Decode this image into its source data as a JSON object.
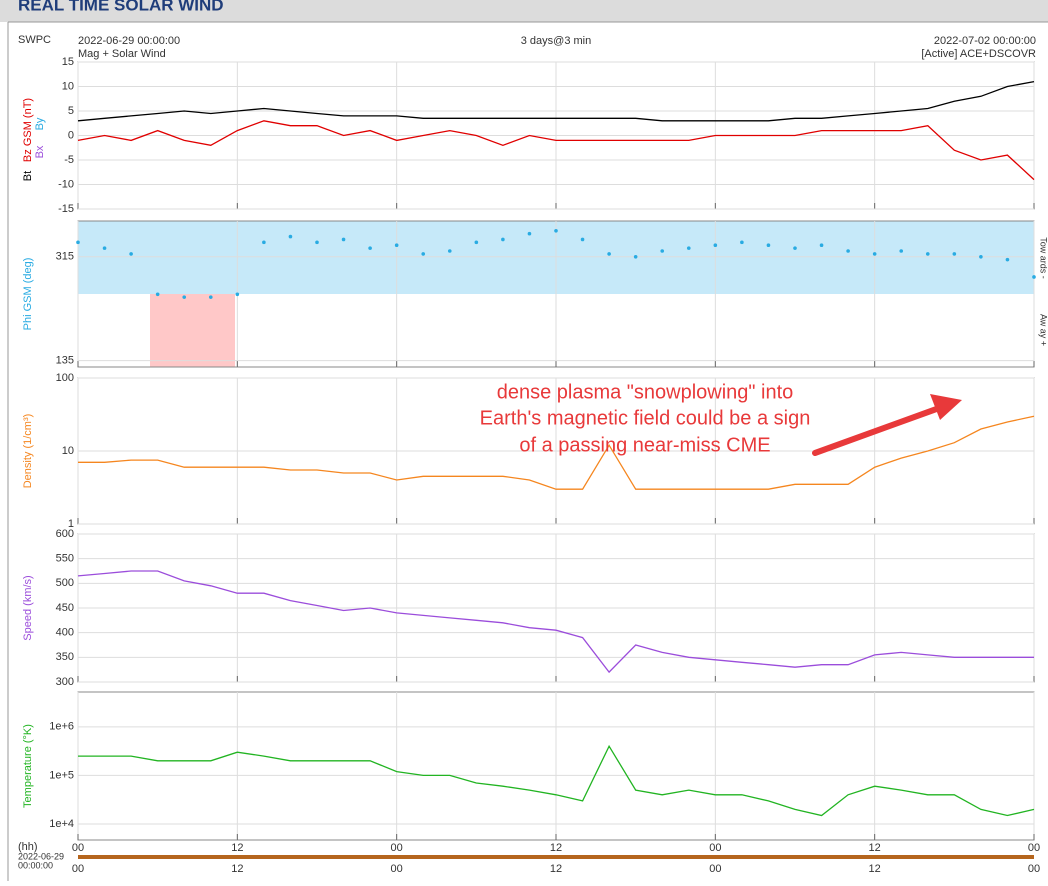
{
  "header": {
    "title": "REAL TIME SOLAR WIND",
    "source": "SWPC",
    "start": "2022-06-29 00:00:00",
    "subtitle": "Mag + Solar Wind",
    "span": "3 days@3 min",
    "end": "2022-07-02 00:00:00",
    "status": "[Active] ACE+DSCOVR"
  },
  "annotation": [
    "dense plasma \"snowplowing\" into",
    "Earth's magnetic field could be a sign",
    "of a passing near-miss CME"
  ],
  "x_axis": {
    "unit": "(hh)",
    "date": "2022-06-29",
    "time": "00:00:00"
  },
  "chart_data": [
    {
      "type": "line",
      "ylabel": "Bz GSM (nT)",
      "other_labels": [
        {
          "text": "Bx",
          "color": "#9b4ddb"
        },
        {
          "text": "By",
          "color": "#29abe2"
        }
      ],
      "x": [
        0,
        2,
        4,
        6,
        8,
        10,
        12,
        14,
        16,
        18,
        20,
        22,
        24,
        26,
        28,
        30,
        32,
        34,
        36,
        38,
        40,
        42,
        44,
        46,
        48,
        50,
        52,
        54,
        56,
        58,
        60,
        62,
        64,
        66,
        68,
        70,
        72
      ],
      "xlim": [
        0,
        72
      ],
      "xticks": [
        {
          "value": 0,
          "label": "00"
        },
        {
          "value": 12,
          "label": "12"
        },
        {
          "value": 24,
          "label": "00"
        },
        {
          "value": 36,
          "label": "12"
        },
        {
          "value": 48,
          "label": "00"
        },
        {
          "value": 60,
          "label": "12"
        },
        {
          "value": 72,
          "label": "00"
        }
      ],
      "ylim": [
        -15,
        15
      ],
      "yticks": [
        -15,
        -10,
        -5,
        0,
        5,
        10,
        15
      ],
      "grid": true,
      "series": [
        {
          "name": "Bt",
          "color": "#000000",
          "values": [
            3,
            3.5,
            4,
            4.5,
            5,
            4.5,
            5,
            5.5,
            5,
            4.5,
            4,
            4,
            4,
            3.5,
            3.5,
            3.5,
            3.5,
            3.5,
            3.5,
            3.5,
            3.5,
            3.5,
            3,
            3,
            3,
            3,
            3,
            3.5,
            3.5,
            4,
            4.5,
            5,
            5.5,
            7,
            8,
            10,
            11
          ]
        },
        {
          "name": "Bz",
          "color": "#e00000",
          "values": [
            -1,
            0,
            -1,
            1,
            -1,
            -2,
            1,
            3,
            2,
            2,
            0,
            1,
            -1,
            0,
            1,
            0,
            -2,
            0,
            -1,
            -1,
            -1,
            -1,
            -1,
            -1,
            0,
            0,
            0,
            0,
            1,
            1,
            1,
            1,
            2,
            -3,
            -5,
            -4,
            -9
          ]
        }
      ]
    },
    {
      "type": "scatter",
      "ylabel": "Phi GSM (deg)",
      "right_labels": [
        "Tow ards -",
        "Aw ay +"
      ],
      "x": [
        0,
        2,
        4,
        6,
        8,
        10,
        12,
        14,
        16,
        18,
        20,
        22,
        24,
        26,
        28,
        30,
        32,
        34,
        36,
        38,
        40,
        42,
        44,
        46,
        48,
        50,
        52,
        54,
        56,
        58,
        60,
        62,
        64,
        66,
        68,
        70,
        72
      ],
      "xlim": [
        0,
        72
      ],
      "xticks": [
        {
          "value": 0,
          "label": "00"
        },
        {
          "value": 12,
          "label": "12"
        },
        {
          "value": 24,
          "label": "00"
        },
        {
          "value": 36,
          "label": "12"
        },
        {
          "value": 48,
          "label": "00"
        },
        {
          "value": 60,
          "label": "12"
        },
        {
          "value": 72,
          "label": "00"
        }
      ],
      "ylim": [
        124,
        377
      ],
      "yticks": [
        135,
        315
      ],
      "grid": true,
      "series": [
        {
          "name": "Phi",
          "color": "#29abe2",
          "values": [
            340,
            330,
            320,
            250,
            245,
            245,
            250,
            340,
            350,
            340,
            345,
            330,
            335,
            320,
            325,
            340,
            345,
            355,
            360,
            345,
            320,
            315,
            325,
            330,
            335,
            340,
            335,
            330,
            335,
            325,
            320,
            325,
            320,
            320,
            315,
            310,
            280
          ]
        }
      ]
    },
    {
      "type": "line",
      "ylabel": "Density (1/cm³)",
      "log": true,
      "x": [
        0,
        2,
        4,
        6,
        8,
        10,
        12,
        14,
        16,
        18,
        20,
        22,
        24,
        26,
        28,
        30,
        32,
        34,
        36,
        38,
        40,
        42,
        44,
        46,
        48,
        50,
        52,
        54,
        56,
        58,
        60,
        62,
        64,
        66,
        68,
        70,
        72
      ],
      "xlim": [
        0,
        72
      ],
      "xticks": [
        {
          "value": 0,
          "label": "00"
        },
        {
          "value": 12,
          "label": "12"
        },
        {
          "value": 24,
          "label": "00"
        },
        {
          "value": 36,
          "label": "12"
        },
        {
          "value": 48,
          "label": "00"
        },
        {
          "value": 60,
          "label": "12"
        },
        {
          "value": 72,
          "label": "00"
        }
      ],
      "ylim": [
        1,
        100
      ],
      "yticks": [
        1,
        10,
        100
      ],
      "grid": true,
      "series": [
        {
          "name": "Density",
          "color": "#f5861f",
          "values": [
            7,
            7,
            7.5,
            7.5,
            6,
            6,
            6,
            6,
            5.5,
            5.5,
            5,
            5,
            4,
            4.5,
            4.5,
            4.5,
            4.5,
            4,
            3,
            3,
            12,
            3,
            3,
            3,
            3,
            3,
            3,
            3.5,
            3.5,
            3.5,
            6,
            8,
            10,
            13,
            20,
            25,
            30
          ]
        }
      ]
    },
    {
      "type": "line",
      "ylabel": "Speed (km/s)",
      "x": [
        0,
        2,
        4,
        6,
        8,
        10,
        12,
        14,
        16,
        18,
        20,
        22,
        24,
        26,
        28,
        30,
        32,
        34,
        36,
        38,
        40,
        42,
        44,
        46,
        48,
        50,
        52,
        54,
        56,
        58,
        60,
        62,
        64,
        66,
        68,
        70,
        72
      ],
      "xlim": [
        0,
        72
      ],
      "xticks": [
        {
          "value": 0,
          "label": "00"
        },
        {
          "value": 12,
          "label": "12"
        },
        {
          "value": 24,
          "label": "00"
        },
        {
          "value": 36,
          "label": "12"
        },
        {
          "value": 48,
          "label": "00"
        },
        {
          "value": 60,
          "label": "12"
        },
        {
          "value": 72,
          "label": "00"
        }
      ],
      "ylim": [
        300,
        600
      ],
      "yticks": [
        300,
        350,
        400,
        450,
        500,
        550,
        600
      ],
      "grid": true,
      "series": [
        {
          "name": "Speed",
          "color": "#9b4ddb",
          "values": [
            515,
            520,
            525,
            525,
            505,
            495,
            480,
            480,
            465,
            455,
            445,
            450,
            440,
            435,
            430,
            425,
            420,
            410,
            405,
            390,
            320,
            375,
            360,
            350,
            345,
            340,
            335,
            330,
            335,
            335,
            355,
            360,
            355,
            350,
            350,
            350,
            350
          ]
        }
      ]
    },
    {
      "type": "line",
      "ylabel": "Temperature (°K)",
      "log": true,
      "x": [
        0,
        2,
        4,
        6,
        8,
        10,
        12,
        14,
        16,
        18,
        20,
        22,
        24,
        26,
        28,
        30,
        32,
        34,
        36,
        38,
        40,
        42,
        44,
        46,
        48,
        50,
        52,
        54,
        56,
        58,
        60,
        62,
        64,
        66,
        68,
        70,
        72
      ],
      "xlim": [
        0,
        72
      ],
      "xticks": [
        {
          "value": 0,
          "label": "00"
        },
        {
          "value": 12,
          "label": "12"
        },
        {
          "value": 24,
          "label": "00"
        },
        {
          "value": 36,
          "label": "12"
        },
        {
          "value": 48,
          "label": "00"
        },
        {
          "value": 60,
          "label": "12"
        },
        {
          "value": 72,
          "label": "00"
        }
      ],
      "ylim": [
        4700,
        5200000
      ],
      "yticks": [
        {
          "value": 10000,
          "label": "1e+4"
        },
        {
          "value": 100000,
          "label": "1e+5"
        },
        {
          "value": 1000000,
          "label": "1e+6"
        }
      ],
      "grid": true,
      "series": [
        {
          "name": "Temperature",
          "color": "#22b422",
          "values": [
            250000,
            250000,
            250000,
            200000,
            200000,
            200000,
            300000,
            250000,
            200000,
            200000,
            200000,
            200000,
            120000,
            100000,
            100000,
            70000,
            60000,
            50000,
            40000,
            30000,
            400000,
            50000,
            40000,
            50000,
            40000,
            40000,
            30000,
            20000,
            15000,
            40000,
            60000,
            50000,
            40000,
            40000,
            20000,
            15000,
            20000
          ]
        }
      ]
    }
  ]
}
